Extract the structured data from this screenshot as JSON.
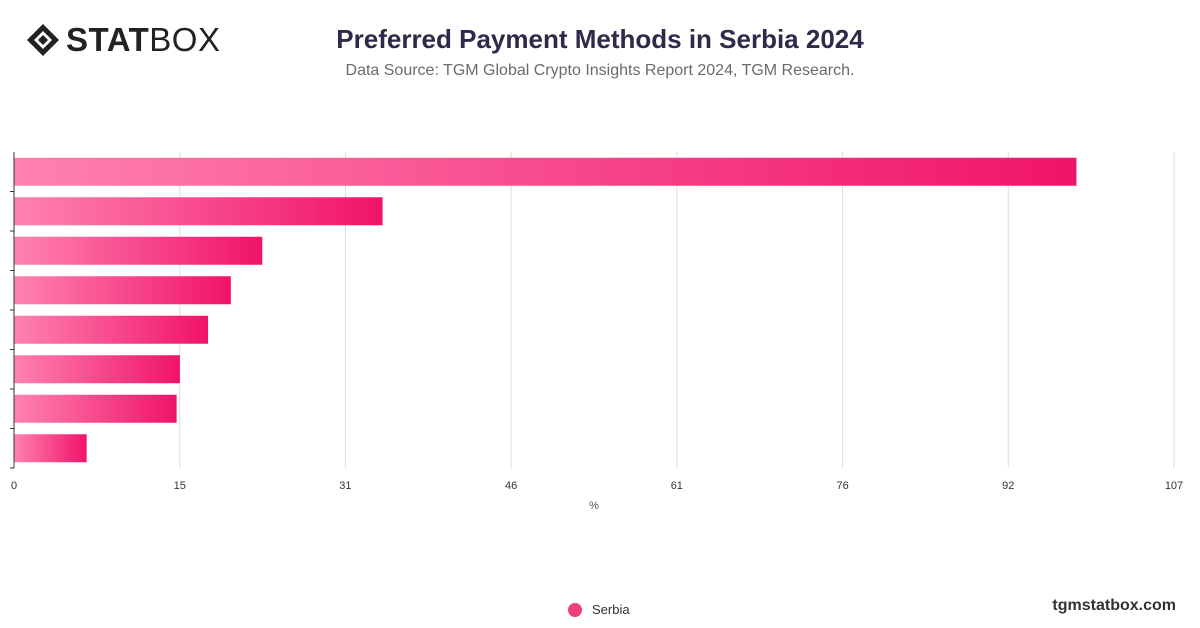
{
  "brand": {
    "logo_bold": "STAT",
    "logo_thin": "BOX",
    "footer": "tgmstatbox.com"
  },
  "header": {
    "title": "Preferred Payment Methods in Serbia 2024",
    "subtitle": "Data Source: TGM Global Crypto Insights Report 2024, TGM Research."
  },
  "legend": {
    "series_label": "Serbia"
  },
  "colors": {
    "bar_start": "#ff82b0",
    "bar_end": "#f0136a",
    "grid": "#dddddd",
    "axis": "#333333"
  },
  "chart_data": {
    "type": "bar",
    "orientation": "horizontal",
    "categories": [
      "",
      "",
      "",
      "",
      "",
      "",
      "",
      ""
    ],
    "series": [
      {
        "name": "Serbia",
        "values": [
          98,
          34,
          22.9,
          20,
          17.9,
          15.3,
          15,
          6.7
        ]
      }
    ],
    "xlabel": "%",
    "ylabel": "",
    "xlim": [
      0,
      107
    ],
    "xticks": [
      "0",
      "15",
      "31",
      "46",
      "61",
      "76",
      "92",
      "107"
    ],
    "xtick_values": [
      0,
      15.29,
      30.57,
      45.86,
      61.14,
      76.43,
      91.71,
      107
    ],
    "grid": true,
    "legend_position": "bottom"
  }
}
